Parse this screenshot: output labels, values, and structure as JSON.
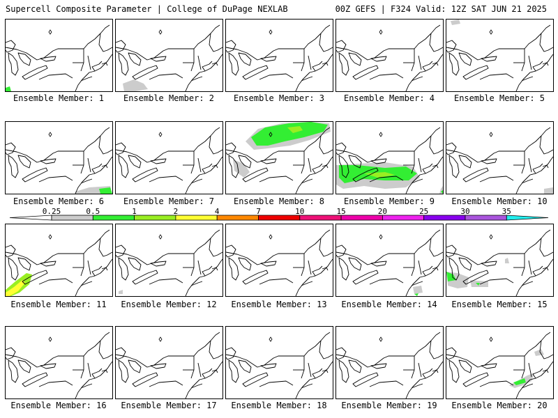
{
  "header": {
    "left": "Supercell Composite Parameter | College of DuPage NEXLAB",
    "right": "00Z GEFS | F324 Valid: 12Z SAT JUN 21 2025"
  },
  "colorbar": {
    "labels": [
      "0.25",
      "0.5",
      "1",
      "2",
      "4",
      "7",
      "10",
      "15",
      "20",
      "25",
      "30",
      "35"
    ],
    "colors": [
      "#cccccc",
      "#33ee33",
      "#99ee22",
      "#ffff33",
      "#ff8800",
      "#ee0000",
      "#ee1177",
      "#ee00aa",
      "#ee22ee",
      "#8800ee",
      "#aa55dd",
      "#22eeee"
    ]
  },
  "panels": [
    {
      "label": "Ensemble Member: 1",
      "shading": "m1"
    },
    {
      "label": "Ensemble Member: 2",
      "shading": "m2"
    },
    {
      "label": "Ensemble Member: 3",
      "shading": "none"
    },
    {
      "label": "Ensemble Member: 4",
      "shading": "none"
    },
    {
      "label": "Ensemble Member: 5",
      "shading": "m5"
    },
    {
      "label": "Ensemble Member: 6",
      "shading": "m6"
    },
    {
      "label": "Ensemble Member: 7",
      "shading": "none"
    },
    {
      "label": "Ensemble Member: 8",
      "shading": "m8"
    },
    {
      "label": "Ensemble Member: 9",
      "shading": "m9"
    },
    {
      "label": "Ensemble Member: 10",
      "shading": "m10"
    },
    {
      "label": "Ensemble Member: 11",
      "shading": "m11"
    },
    {
      "label": "Ensemble Member: 12",
      "shading": "m12"
    },
    {
      "label": "Ensemble Member: 13",
      "shading": "none"
    },
    {
      "label": "Ensemble Member: 14",
      "shading": "m14"
    },
    {
      "label": "Ensemble Member: 15",
      "shading": "m15"
    },
    {
      "label": "Ensemble Member: 16",
      "shading": "none"
    },
    {
      "label": "Ensemble Member: 17",
      "shading": "none"
    },
    {
      "label": "Ensemble Member: 18",
      "shading": "none"
    },
    {
      "label": "Ensemble Member: 19",
      "shading": "none"
    },
    {
      "label": "Ensemble Member: 20",
      "shading": "m20"
    }
  ]
}
